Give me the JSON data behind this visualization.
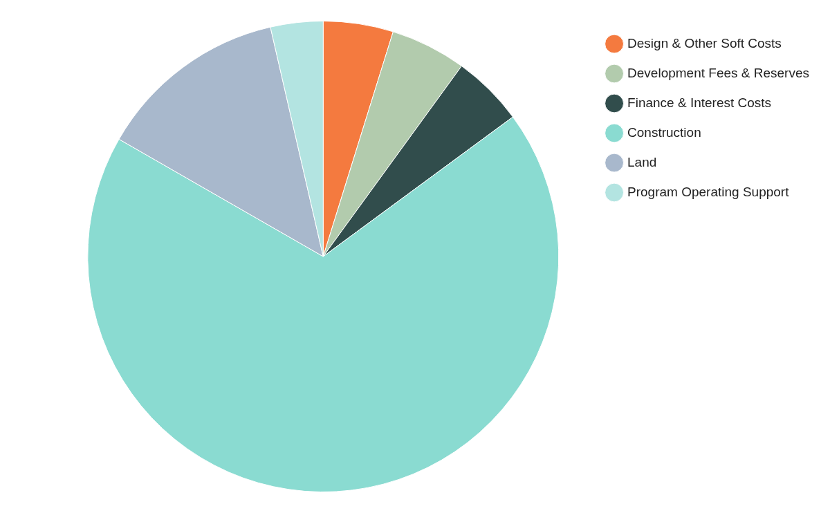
{
  "chart_data": {
    "type": "pie",
    "categories": [
      "Design & Other Soft Costs",
      "Development Fees & Reserves",
      "Finance & Interest Costs",
      "Construction",
      "Land",
      "Program Operating Support"
    ],
    "values": [
      4.8,
      5.2,
      4.9,
      68.4,
      13.1,
      3.6
    ],
    "colors": [
      "#f47a3f",
      "#b2cbad",
      "#314d4c",
      "#8adbd1",
      "#a8b8cc",
      "#b3e4e1"
    ],
    "legend": "top right"
  }
}
